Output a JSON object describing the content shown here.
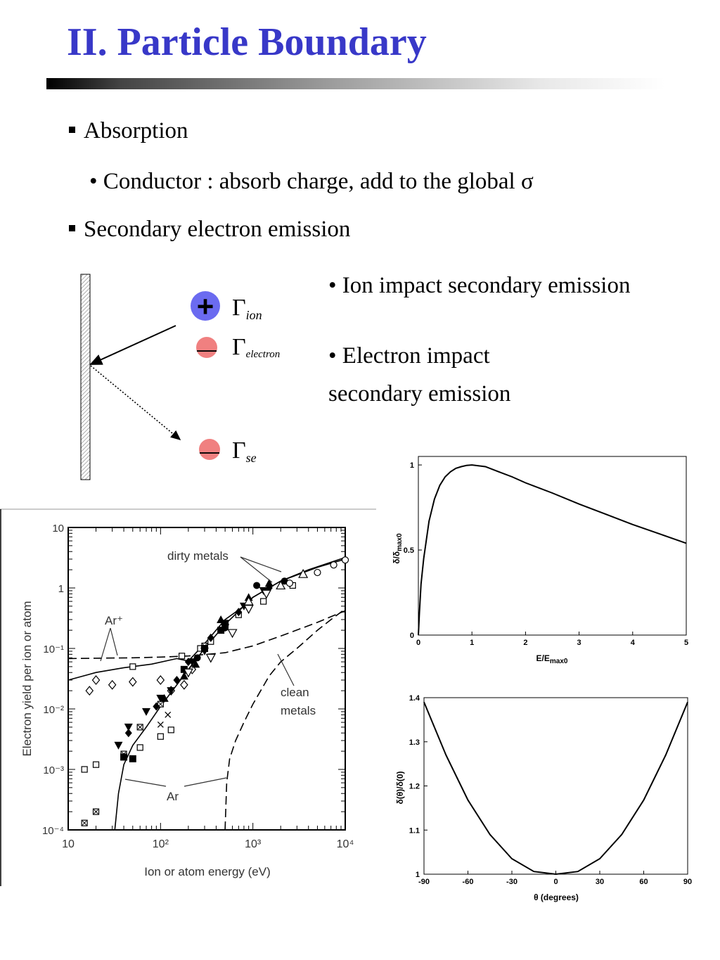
{
  "slide": {
    "title": "II. Particle Boundary",
    "bullet1": "Absorption",
    "sub1": "• Conductor : absorb charge, add to the global σ",
    "bullet2": "Secondary electron emission",
    "ion_impact": "• Ion impact secondary emission",
    "electron_impact_1": "• Electron impact",
    "electron_impact_2": "secondary emission"
  },
  "diagram": {
    "gamma": "Γ",
    "plus_sign": "+",
    "minus_sign": "—",
    "ion_sub": "ion",
    "electron_sub": "electron",
    "se_sub": "se",
    "colors": {
      "ion": "#6b6bf0",
      "electron": "#f08080"
    }
  },
  "chart_data": [
    {
      "type": "scatter",
      "xlabel": "Ion or atom energy (eV)",
      "ylabel": "Electron yield per ion or atom",
      "x_scale": "log",
      "y_scale": "log",
      "xlim": [
        10,
        10000
      ],
      "ylim": [
        0.0001,
        10
      ],
      "x_ticks": [
        "10",
        "10²",
        "10³",
        "10⁴"
      ],
      "y_ticks": [
        "10⁻⁴",
        "10⁻³",
        "10⁻²",
        "10⁻¹",
        "1",
        "10"
      ],
      "annotations": {
        "dirty": "dirty metals",
        "ar_plus": "Ar⁺",
        "clean_1": "clean",
        "clean_2": "metals",
        "ar": "Ar"
      },
      "series": [
        {
          "style": "solid",
          "x": [
            10,
            20,
            40,
            80,
            150,
            200,
            300,
            500,
            800,
            1000,
            2000,
            5000,
            10000
          ],
          "y": [
            0.03,
            0.04,
            0.048,
            0.055,
            0.068,
            0.062,
            0.12,
            0.3,
            0.5,
            0.7,
            1.3,
            2.2,
            3.0
          ]
        },
        {
          "style": "dashed",
          "x": [
            10,
            20,
            50,
            100,
            200,
            500,
            1000,
            2000,
            5000,
            10000
          ],
          "y": [
            0.068,
            0.069,
            0.07,
            0.072,
            0.075,
            0.085,
            0.11,
            0.16,
            0.27,
            0.42
          ]
        },
        {
          "style": "solid",
          "x": [
            32,
            35,
            40,
            50,
            70,
            100,
            150,
            200,
            300,
            500,
            1000,
            2000,
            4000,
            10000
          ],
          "y": [
            0.0001,
            0.0004,
            0.0012,
            0.0025,
            0.005,
            0.011,
            0.025,
            0.045,
            0.1,
            0.25,
            0.7,
            1.3,
            2.0,
            3.2
          ]
        },
        {
          "style": "dashed",
          "x": [
            500,
            520,
            560,
            650,
            800,
            1000,
            1500,
            2000,
            3000,
            5000,
            7000,
            10000
          ],
          "y": [
            0.0001,
            0.0006,
            0.0015,
            0.003,
            0.006,
            0.012,
            0.035,
            0.06,
            0.1,
            0.2,
            0.3,
            0.45
          ]
        }
      ],
      "points": [
        {
          "m": "sq",
          "x": [
            15,
            20,
            60,
            100,
            130,
            50,
            170,
            270,
            350,
            700,
            1300,
            2700
          ],
          "y": [
            0.001,
            0.0012,
            0.0023,
            0.0035,
            0.0045,
            0.05,
            0.075,
            0.1,
            0.13,
            0.36,
            0.6,
            1.1
          ]
        },
        {
          "m": "sqx",
          "x": [
            15,
            20,
            40,
            60,
            100,
            300
          ],
          "y": [
            0.00013,
            0.0002,
            0.0018,
            0.005,
            0.012,
            0.11
          ]
        },
        {
          "m": "dia",
          "x": [
            17,
            20,
            30,
            50,
            100,
            130,
            180,
            220
          ],
          "y": [
            0.02,
            0.03,
            0.025,
            0.028,
            0.03,
            0.02,
            0.025,
            0.045
          ]
        },
        {
          "m": "sqf",
          "x": [
            40,
            50,
            180,
            300,
            450,
            500
          ],
          "y": [
            0.0016,
            0.0015,
            0.045,
            0.1,
            0.2,
            0.26
          ]
        },
        {
          "m": "tdf",
          "x": [
            35,
            45,
            70,
            100,
            130,
            220,
            300,
            500,
            800,
            1300
          ],
          "y": [
            0.0025,
            0.005,
            0.009,
            0.015,
            0.02,
            0.06,
            0.09,
            0.22,
            0.5,
            0.9
          ]
        },
        {
          "m": "dmf",
          "x": [
            45,
            90,
            150,
            200,
            350,
            700,
            1500
          ],
          "y": [
            0.004,
            0.011,
            0.03,
            0.06,
            0.15,
            0.4,
            1.0
          ]
        },
        {
          "m": "tuf",
          "x": [
            110,
            180,
            240,
            450,
            900,
            1500
          ],
          "y": [
            0.015,
            0.035,
            0.055,
            0.3,
            0.7,
            1.2
          ]
        },
        {
          "m": "circf",
          "x": [
            250,
            500,
            1100,
            2200
          ],
          "y": [
            0.07,
            0.22,
            1.1,
            1.3
          ]
        },
        {
          "m": "x",
          "x": [
            100,
            120
          ],
          "y": [
            0.0055,
            0.008
          ]
        },
        {
          "m": "tdo",
          "x": [
            200,
            350,
            600,
            900,
            1400
          ],
          "y": [
            0.04,
            0.07,
            0.18,
            0.45,
            0.8
          ]
        },
        {
          "m": "tuo",
          "x": [
            900,
            2000,
            3500
          ],
          "y": [
            0.6,
            1.1,
            1.7
          ]
        },
        {
          "m": "circo",
          "x": [
            2500,
            5000,
            7500,
            10000
          ],
          "y": [
            1.2,
            1.8,
            2.4,
            2.9
          ]
        }
      ]
    },
    {
      "type": "line",
      "xlabel": "E/E",
      "xlabel_sub": "max0",
      "ylabel": "δ/δ",
      "ylabel_sub": "max0",
      "xlim": [
        0,
        5
      ],
      "ylim": [
        0,
        1.05
      ],
      "x_ticks": [
        "0",
        "1",
        "2",
        "3",
        "4",
        "5"
      ],
      "y_ticks": [
        "0",
        "0.5",
        "1"
      ],
      "x": [
        0,
        0.02,
        0.05,
        0.1,
        0.2,
        0.3,
        0.4,
        0.5,
        0.6,
        0.7,
        0.8,
        0.9,
        1.0,
        1.25,
        1.5,
        1.75,
        2.0,
        2.5,
        3.0,
        3.5,
        4.0,
        4.5,
        5.0
      ],
      "y": [
        0,
        0.13,
        0.3,
        0.45,
        0.67,
        0.8,
        0.88,
        0.93,
        0.96,
        0.98,
        0.99,
        0.997,
        1.0,
        0.99,
        0.96,
        0.93,
        0.895,
        0.835,
        0.77,
        0.71,
        0.65,
        0.595,
        0.54
      ]
    },
    {
      "type": "line",
      "xlabel": "θ (degrees)",
      "ylabel": "δ(θ)/δ(0)",
      "xlim": [
        -90,
        90
      ],
      "ylim": [
        1,
        1.4
      ],
      "x_ticks": [
        "-90",
        "-60",
        "-30",
        "0",
        "30",
        "60",
        "90"
      ],
      "y_ticks": [
        "1",
        "1.1",
        "1.2",
        "1.3",
        "1.4"
      ],
      "x": [
        -90,
        -75,
        -60,
        -45,
        -30,
        -15,
        0,
        15,
        30,
        45,
        60,
        75,
        90
      ],
      "y": [
        1.39,
        1.27,
        1.168,
        1.09,
        1.035,
        1.006,
        1.0,
        1.006,
        1.035,
        1.09,
        1.168,
        1.27,
        1.39
      ]
    }
  ]
}
